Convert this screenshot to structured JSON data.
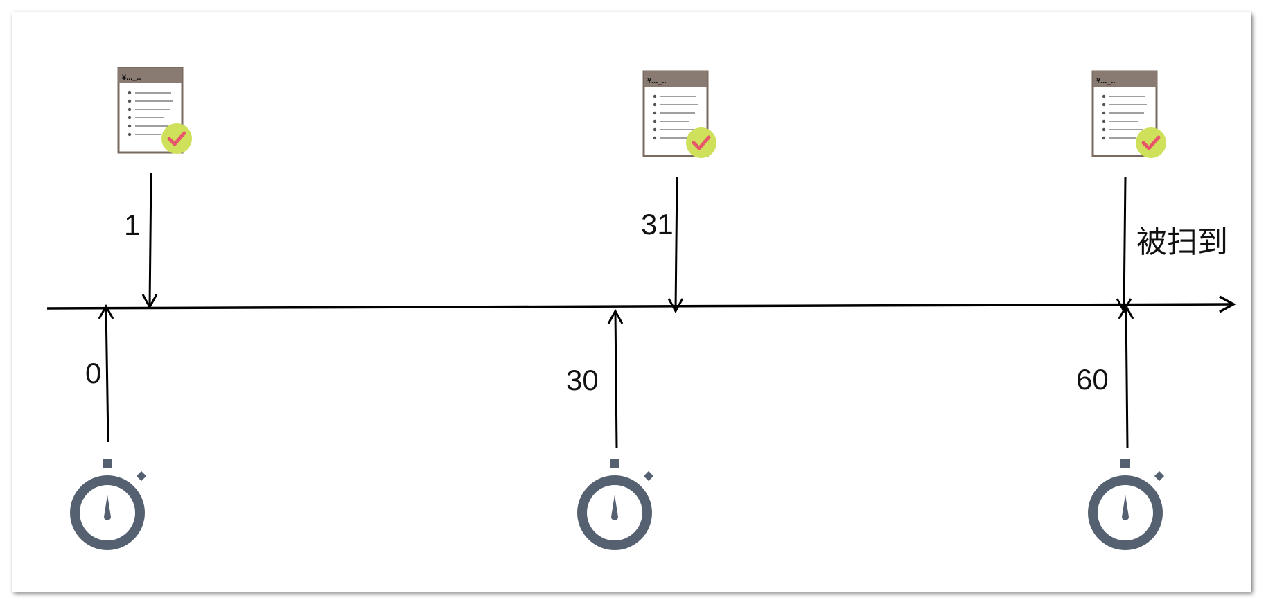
{
  "timeline": {
    "axis_color": "#000000",
    "orders": [
      {
        "label": "1",
        "icon": "order-document-icon",
        "badge_icon": "check-badge-icon",
        "doc_header": "¥..._.."
      },
      {
        "label": "31",
        "icon": "order-document-icon",
        "badge_icon": "check-badge-icon",
        "doc_header": "¥..._.."
      },
      {
        "label": "",
        "icon": "order-document-icon",
        "badge_icon": "check-badge-icon",
        "doc_header": "¥..._.."
      }
    ],
    "scans": [
      {
        "label": "0",
        "icon": "stopwatch-icon"
      },
      {
        "label": "30",
        "icon": "stopwatch-icon"
      },
      {
        "label": "60",
        "icon": "stopwatch-icon"
      }
    ],
    "annotation": "被扫到"
  },
  "colors": {
    "doc_header": "#8a7b72",
    "doc_border": "#7a6b62",
    "badge_fill": "#cfe05a",
    "check_mark": "#e8566b",
    "stopwatch": "#556070"
  }
}
